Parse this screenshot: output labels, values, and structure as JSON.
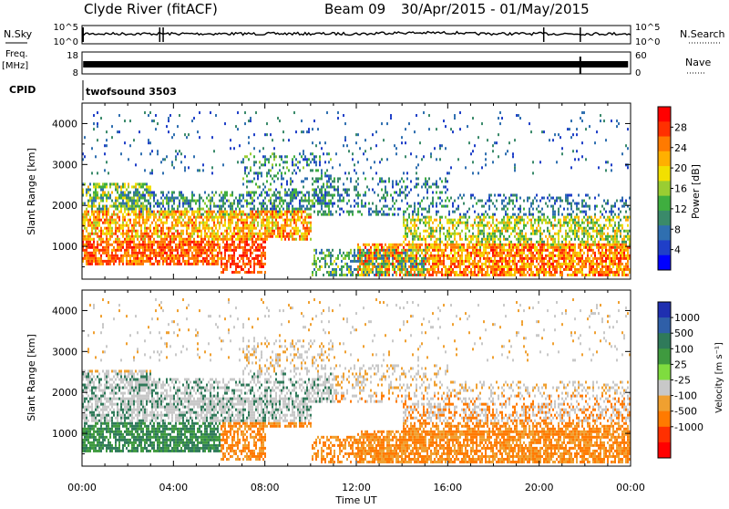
{
  "header": {
    "station": "Clyde River (fitACF)",
    "beam": "Beam 09",
    "date_range": "30/Apr/2015 - 01/May/2015"
  },
  "nsky_panel": {
    "left_label": "N.Sky",
    "right_label": "N.Search",
    "left_ticks": [
      "10^5",
      "10^0"
    ],
    "right_ticks": [
      "10^5",
      "10^0"
    ]
  },
  "freq_panel": {
    "left_label": "Freq.",
    "left_unit": "[MHz]",
    "left_ticks": [
      "18",
      "8"
    ],
    "right_label": "Nave",
    "right_ticks": [
      "60",
      "0"
    ]
  },
  "cpid_panel": {
    "label": "CPID",
    "value": "twofsound 3503"
  },
  "chart_data": [
    {
      "type": "heatmap",
      "quantity": "power",
      "ylabel": "Slant Range [km]",
      "xlabel": "",
      "x_tick_labels": [
        "00:00",
        "04:00",
        "08:00",
        "12:00",
        "16:00",
        "20:00",
        "00:00"
      ],
      "x_range_hours": [
        0,
        24
      ],
      "y_ticks": [
        1000,
        2000,
        3000,
        4000
      ],
      "ylim": [
        200,
        4500
      ],
      "colorbar": {
        "label": "Power [dB]",
        "tick_labels": [
          "4",
          "8",
          "12",
          "16",
          "20",
          "24",
          "28"
        ],
        "range": [
          0,
          32
        ],
        "colors": [
          "#0000ff",
          "#1f3fc8",
          "#2f6fb0",
          "#3a8a6a",
          "#3fae3f",
          "#9acd32",
          "#f2e000",
          "#ffb000",
          "#ff7a00",
          "#ff3000",
          "#ff0000"
        ]
      }
    },
    {
      "type": "heatmap",
      "quantity": "velocity",
      "ylabel": "Slant Range [km]",
      "xlabel": "Time UT",
      "x_tick_labels": [
        "00:00",
        "04:00",
        "08:00",
        "12:00",
        "16:00",
        "20:00",
        "00:00"
      ],
      "x_range_hours": [
        0,
        24
      ],
      "y_ticks": [
        1000,
        2000,
        3000,
        4000
      ],
      "ylim": [
        200,
        4500
      ],
      "colorbar": {
        "label": "Velocity [m s⁻¹]",
        "tick_labels": [
          "1000",
          "500",
          "100",
          "25",
          "-25",
          "-100",
          "-500",
          "-1000"
        ],
        "colors": [
          "#1f2fb0",
          "#2f5fa8",
          "#2f7a5a",
          "#3f9a3f",
          "#7fdc3f",
          "#c8c8c8",
          "#f0a030",
          "#ff7a00",
          "#ff3000",
          "#ff0000"
        ]
      }
    }
  ]
}
